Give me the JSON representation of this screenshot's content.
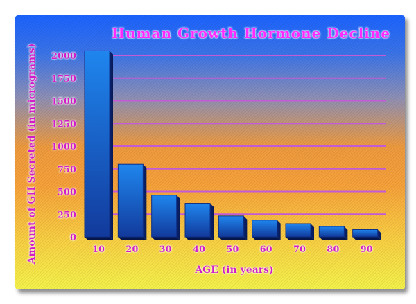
{
  "chart_data": {
    "type": "bar",
    "title": "Human Growth Hormone Decline",
    "xlabel": "AGE (in years)",
    "ylabel": "Amount of GH Secreted (in micrograms)",
    "categories": [
      "10",
      "20",
      "30",
      "40",
      "50",
      "60",
      "70",
      "80",
      "90"
    ],
    "values": [
      2050,
      800,
      460,
      370,
      230,
      185,
      145,
      115,
      80
    ],
    "ylim": [
      0,
      2000
    ],
    "yticks": [
      "0",
      "250",
      "500",
      "750",
      "1000",
      "1250",
      "1500",
      "1750",
      "2000"
    ],
    "grid": true,
    "legend": "none",
    "colors": {
      "title_text": "#ff2bff",
      "bar_top": "#1f86ee",
      "bar_bottom": "#123a9c",
      "gridline": "#c35bd6",
      "label_text": "#d21cc8"
    }
  }
}
